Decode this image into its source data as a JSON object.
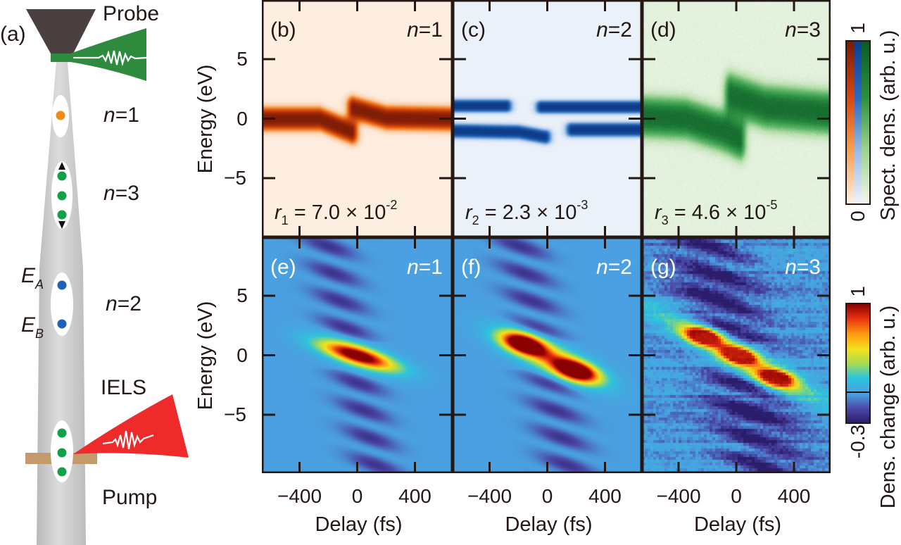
{
  "schematic": {
    "panel_label": "(a)",
    "probe_label": "Probe",
    "pump_label": "Pump",
    "iels_label": "IELS",
    "states": [
      {
        "var": "n",
        "value": "=1"
      },
      {
        "var": "n",
        "value": "=3"
      },
      {
        "var": "n",
        "value": "=2"
      }
    ],
    "energy_a": {
      "var": "E",
      "sub": "A"
    },
    "energy_b": {
      "var": "E",
      "sub": "B"
    },
    "colors": {
      "tip": "#4b4040",
      "probe": "#2e8b3e",
      "pump": "#ee2a2a",
      "sample": "#c49a6c",
      "beam": "#c8c8c8",
      "n1_dot": "#f08c1a",
      "n2_dot": "#1e63b8",
      "n3_dot": "#12a14a"
    }
  },
  "chart_data": [
    {
      "type": "heatmap",
      "panel": "(b)",
      "n": {
        "var": "n",
        "value": "=1"
      },
      "colormap": "orange",
      "value_range": [
        0,
        1
      ],
      "ylabel": "Energy (eV)",
      "yticklabels": [
        "5",
        "0",
        "−5"
      ],
      "xlim": [
        -660,
        660
      ],
      "ylim": [
        -10,
        10
      ],
      "xticks": [
        -400,
        0,
        400
      ],
      "yticks": [
        -5,
        0,
        5
      ],
      "annotation": {
        "var": "r",
        "sub": "1",
        "value": " = 7.0 × 10",
        "exp": "-2"
      },
      "bands": [
        {
          "path": [
            [
              -660,
              0
            ],
            [
              -260,
              0
            ],
            [
              -40,
              -1.1
            ]
          ],
          "width_eV": 1.0
        },
        {
          "path": [
            [
              -30,
              0.9
            ],
            [
              200,
              0.1
            ],
            [
              660,
              0
            ]
          ],
          "width_eV": 1.0
        }
      ]
    },
    {
      "type": "heatmap",
      "panel": "(c)",
      "n": {
        "var": "n",
        "value": "=2"
      },
      "colormap": "blue",
      "value_range": [
        0,
        1
      ],
      "xlim": [
        -660,
        660
      ],
      "ylim": [
        -10,
        10
      ],
      "xticks": [
        -400,
        0,
        400
      ],
      "yticks": [
        -5,
        0,
        5
      ],
      "annotation": {
        "var": "r",
        "sub": "2",
        "value": " = 2.3 × 10",
        "exp": "-3"
      },
      "bands": [
        {
          "path": [
            [
              -660,
              1.1
            ],
            [
              -290,
              1.1
            ]
          ],
          "width_eV": 0.55
        },
        {
          "path": [
            [
              -660,
              -1.0
            ],
            [
              -200,
              -1.1
            ],
            [
              -20,
              -1.5
            ]
          ],
          "width_eV": 0.6
        },
        {
          "path": [
            [
              -40,
              1.0
            ],
            [
              660,
              1.0
            ]
          ],
          "width_eV": 0.55
        },
        {
          "path": [
            [
              170,
              -0.9
            ],
            [
              660,
              -0.9
            ]
          ],
          "width_eV": 0.6
        }
      ]
    },
    {
      "type": "heatmap",
      "panel": "(d)",
      "n": {
        "var": "n",
        "value": "=3"
      },
      "colormap": "green",
      "value_range": [
        0,
        1
      ],
      "xlim": [
        -660,
        660
      ],
      "ylim": [
        -10,
        10
      ],
      "xticks": [
        -400,
        0,
        400
      ],
      "yticks": [
        -5,
        0,
        5
      ],
      "annotation": {
        "var": "r",
        "sub": "3",
        "value": " = 4.6 × 10",
        "exp": "-5"
      },
      "bands": [
        {
          "path": [
            [
              -660,
              0.2
            ],
            [
              -350,
              0
            ],
            [
              -100,
              -1.0
            ],
            [
              20,
              -1.7
            ]
          ],
          "width_eV": 1.7
        },
        {
          "path": [
            [
              -40,
              2.0
            ],
            [
              200,
              1.0
            ],
            [
              660,
              0.5
            ]
          ],
          "width_eV": 1.8
        }
      ]
    },
    {
      "type": "heatmap",
      "panel": "(e)",
      "n": {
        "var": "n",
        "value": "=1"
      },
      "colormap": "jet",
      "value_range": [
        -0.3,
        1
      ],
      "ylabel": "Energy (eV)",
      "yticklabels": [
        "5",
        "0",
        "−5"
      ],
      "xlabel": "Delay (fs)",
      "xticklabels": [
        "−400",
        "0",
        "400"
      ],
      "xlim": [
        -660,
        660
      ],
      "ylim": [
        -10,
        10
      ],
      "xticks": [
        -400,
        0,
        400
      ],
      "yticks": [
        -5,
        0,
        5
      ],
      "peaks": [
        {
          "delay": 0,
          "energy": 0,
          "amp": 1.15,
          "sd_delay": 190,
          "sd_energy": 0.6,
          "slope": -0.0035
        }
      ],
      "fringes": {
        "amp": 0.22,
        "period_eV": 2.3,
        "center_delay": -40,
        "sd_delay": 170
      }
    },
    {
      "type": "heatmap",
      "panel": "(f)",
      "n": {
        "var": "n",
        "value": "=2"
      },
      "colormap": "jet",
      "value_range": [
        -0.3,
        1
      ],
      "xlabel": "Delay (fs)",
      "xticklabels": [
        "−400",
        "0",
        "400"
      ],
      "xlim": [
        -660,
        660
      ],
      "ylim": [
        -10,
        10
      ],
      "xticks": [
        -400,
        0,
        400
      ],
      "yticks": [
        -5,
        0,
        5
      ],
      "peaks": [
        {
          "delay": -170,
          "energy": 1.0,
          "amp": 1.05,
          "sd_delay": 110,
          "sd_energy": 0.6,
          "slope": -0.003
        },
        {
          "delay": 200,
          "energy": -1.3,
          "amp": 1.05,
          "sd_delay": 110,
          "sd_energy": 0.6,
          "slope": -0.003
        },
        {
          "delay": 20,
          "energy": -0.2,
          "amp": 0.6,
          "sd_delay": 230,
          "sd_energy": 0.9,
          "slope": -0.005
        }
      ],
      "fringes": {
        "amp": 0.22,
        "period_eV": 2.3,
        "center_delay": -30,
        "sd_delay": 180
      }
    },
    {
      "type": "heatmap",
      "panel": "(g)",
      "n": {
        "var": "n",
        "value": "=3"
      },
      "colormap": "jet",
      "value_range": [
        -0.3,
        1
      ],
      "xlabel": "Delay (fs)",
      "xticklabels": [
        "−400",
        "0",
        "400"
      ],
      "xlim": [
        -660,
        660
      ],
      "ylim": [
        -10,
        10
      ],
      "xticks": [
        -400,
        0,
        400
      ],
      "yticks": [
        -5,
        0,
        5
      ],
      "peaks": [
        {
          "delay": -240,
          "energy": 1.7,
          "amp": 1.05,
          "sd_delay": 90,
          "sd_energy": 0.5,
          "slope": -0.002
        },
        {
          "delay": 10,
          "energy": 0.1,
          "amp": 1.0,
          "sd_delay": 90,
          "sd_energy": 0.5,
          "slope": -0.002
        },
        {
          "delay": 270,
          "energy": -1.8,
          "amp": 1.05,
          "sd_delay": 90,
          "sd_energy": 0.5,
          "slope": -0.002
        },
        {
          "delay": 0,
          "energy": 0,
          "amp": 0.55,
          "sd_delay": 420,
          "sd_energy": 0.9,
          "slope": -0.0065
        }
      ],
      "fringes": {
        "amp": 0.3,
        "period_eV": 2.3,
        "center_delay": -20,
        "sd_delay": 260,
        "noise": 0.12
      }
    }
  ],
  "colorbars": [
    {
      "label": "Spect. dens. (arb. u.)",
      "max": "1",
      "min": "0",
      "colormaps": [
        "orange",
        "blue",
        "green"
      ]
    },
    {
      "label": "Dens. change (arb. u.)",
      "max": "1",
      "min": "-0.3",
      "colormaps": [
        "jet"
      ]
    }
  ]
}
